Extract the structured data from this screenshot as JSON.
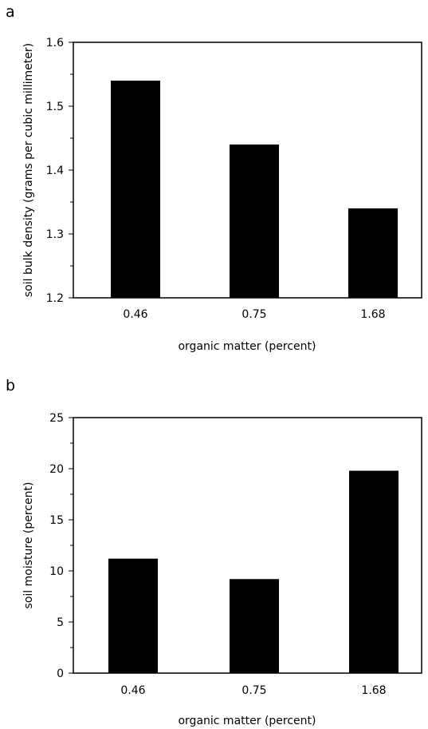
{
  "chart_data": [
    {
      "type": "bar",
      "panel_label": "a",
      "categories": [
        "0.46",
        "0.75",
        "1.68"
      ],
      "values": [
        1.54,
        1.44,
        1.34
      ],
      "xlabel": "organic matter (percent)",
      "ylabel": "soil bulk density (grams per cubic millimeter)",
      "ylim": [
        1.2,
        1.6
      ],
      "yticks": [
        "1.2",
        "1.3",
        "1.4",
        "1.5",
        "1.6"
      ],
      "grid": false,
      "bar_color": "#000000"
    },
    {
      "type": "bar",
      "panel_label": "b",
      "categories": [
        "0.46",
        "0.75",
        "1.68"
      ],
      "values": [
        11.2,
        9.2,
        19.8
      ],
      "xlabel": "organic matter (percent)",
      "ylabel": "soil moisture (percent)",
      "ylim": [
        0,
        25
      ],
      "yticks": [
        "0",
        "5",
        "10",
        "15",
        "20",
        "25"
      ],
      "grid": false,
      "bar_color": "#000000"
    }
  ]
}
